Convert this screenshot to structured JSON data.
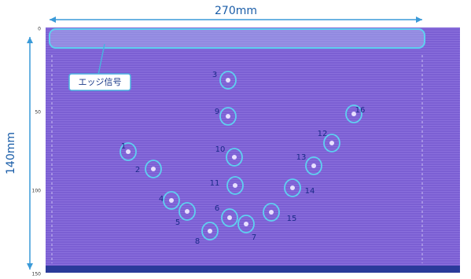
{
  "dimensions": {
    "width": "270mm",
    "height": "140mm"
  },
  "callout": "エッジ信号",
  "axis_ticks": [
    "0",
    "50",
    "100",
    "150"
  ],
  "markers": [
    "1",
    "2",
    "3",
    "4",
    "5",
    "6",
    "7",
    "8",
    "9",
    "10",
    "11",
    "12",
    "13",
    "14",
    "15",
    "16"
  ]
}
